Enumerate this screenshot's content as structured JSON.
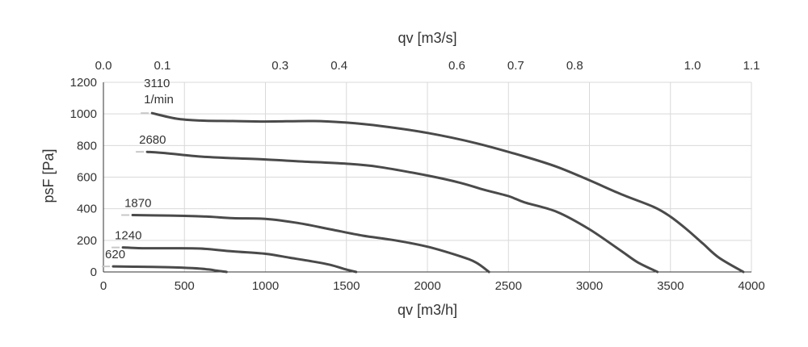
{
  "chart_data": {
    "type": "line",
    "title": "",
    "xlabel_bottom": "qv [m3/h]",
    "xlabel_top": "qv [m3/s]",
    "ylabel": "psF [Pa]",
    "xlim": [
      0,
      4000
    ],
    "ylim": [
      0,
      1200
    ],
    "x_ticks": [
      "0",
      "500",
      "1000",
      "1500",
      "2000",
      "2500",
      "3000",
      "3500",
      "4000"
    ],
    "x_tick_values": [
      0,
      500,
      1000,
      1500,
      2000,
      2500,
      3000,
      3500,
      4000
    ],
    "top_ticks": [
      "0.0",
      "0.1",
      "0.3",
      "0.4",
      "0.6",
      "0.7",
      "0.8",
      "1.0",
      "1.1"
    ],
    "top_tick_values": [
      0,
      0.1,
      0.3,
      0.4,
      0.6,
      0.7,
      0.8,
      1.0,
      1.1
    ],
    "y_ticks": [
      "0",
      "200",
      "400",
      "600",
      "800",
      "1000",
      "1200"
    ],
    "y_tick_values": [
      0,
      200,
      400,
      600,
      800,
      1000,
      1200
    ],
    "grid": true,
    "series": [
      {
        "label": "3110",
        "label2": "1/min",
        "points": [
          [
            300,
            1005
          ],
          [
            450,
            970
          ],
          [
            600,
            958
          ],
          [
            800,
            955
          ],
          [
            1000,
            952
          ],
          [
            1300,
            955
          ],
          [
            1500,
            945
          ],
          [
            1700,
            925
          ],
          [
            2000,
            880
          ],
          [
            2300,
            815
          ],
          [
            2600,
            730
          ],
          [
            2800,
            665
          ],
          [
            3000,
            580
          ],
          [
            3200,
            490
          ],
          [
            3400,
            410
          ],
          [
            3500,
            350
          ],
          [
            3600,
            270
          ],
          [
            3700,
            180
          ],
          [
            3800,
            90
          ],
          [
            3950,
            0
          ]
        ]
      },
      {
        "label": "2680",
        "points": [
          [
            270,
            760
          ],
          [
            400,
            750
          ],
          [
            600,
            730
          ],
          [
            800,
            720
          ],
          [
            1000,
            712
          ],
          [
            1200,
            700
          ],
          [
            1500,
            685
          ],
          [
            1700,
            665
          ],
          [
            2000,
            610
          ],
          [
            2200,
            565
          ],
          [
            2350,
            520
          ],
          [
            2500,
            480
          ],
          [
            2600,
            440
          ],
          [
            2800,
            380
          ],
          [
            3000,
            270
          ],
          [
            3200,
            130
          ],
          [
            3300,
            60
          ],
          [
            3420,
            0
          ]
        ]
      },
      {
        "label": "1870",
        "points": [
          [
            180,
            360
          ],
          [
            300,
            358
          ],
          [
            500,
            355
          ],
          [
            650,
            350
          ],
          [
            800,
            340
          ],
          [
            1000,
            336
          ],
          [
            1200,
            310
          ],
          [
            1400,
            270
          ],
          [
            1600,
            230
          ],
          [
            1800,
            200
          ],
          [
            2000,
            160
          ],
          [
            2200,
            100
          ],
          [
            2300,
            60
          ],
          [
            2380,
            0
          ]
        ]
      },
      {
        "label": "1240",
        "points": [
          [
            120,
            155
          ],
          [
            250,
            150
          ],
          [
            400,
            150
          ],
          [
            600,
            148
          ],
          [
            800,
            130
          ],
          [
            1000,
            115
          ],
          [
            1150,
            90
          ],
          [
            1300,
            65
          ],
          [
            1400,
            45
          ],
          [
            1500,
            15
          ],
          [
            1560,
            0
          ]
        ]
      },
      {
        "label": "620",
        "points": [
          [
            60,
            35
          ],
          [
            200,
            33
          ],
          [
            400,
            30
          ],
          [
            550,
            24
          ],
          [
            650,
            16
          ],
          [
            700,
            8
          ],
          [
            760,
            0
          ]
        ]
      }
    ]
  }
}
